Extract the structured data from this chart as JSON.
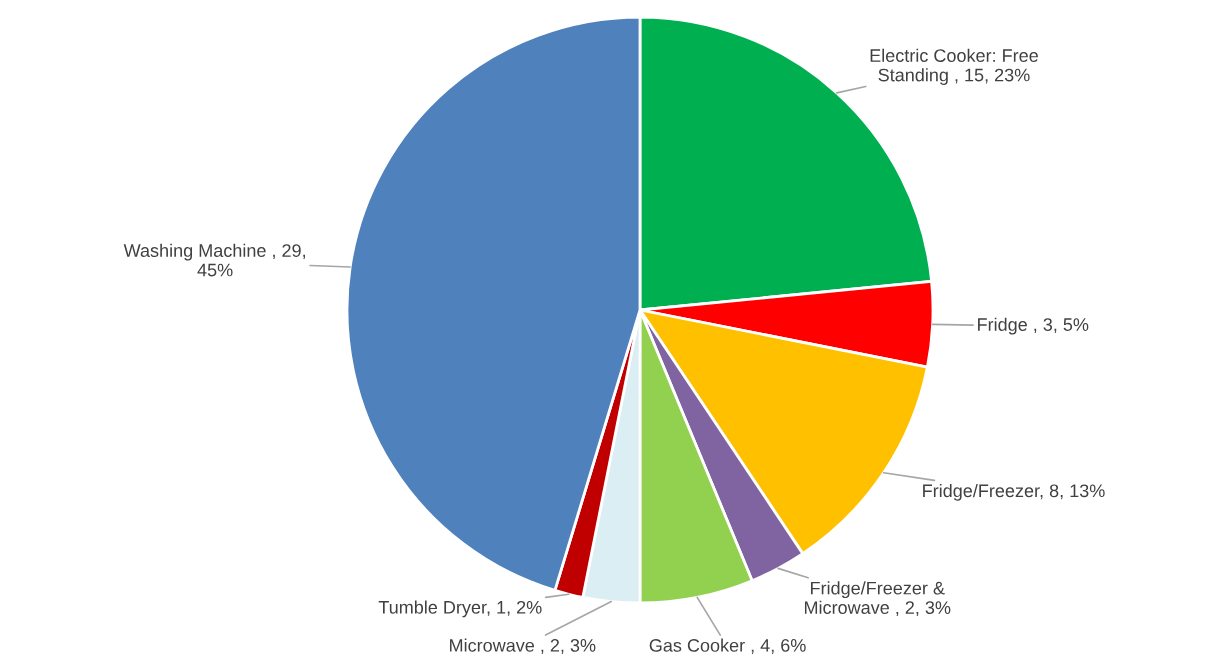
{
  "chart_data": {
    "type": "pie",
    "categories": [
      "Electric Cooker: Free Standing ",
      "Fridge ",
      "Fridge/Freezer",
      "Fridge/Freezer & Microwave ",
      "Gas Cooker ",
      "Microwave ",
      "Tumble Dryer",
      "Washing Machine "
    ],
    "values": [
      15,
      3,
      8,
      2,
      4,
      2,
      1,
      29
    ],
    "value_labels": [
      "15, 23%",
      "3, 5%",
      "8, 13%",
      "2, 3%",
      "4, 6%",
      "2, 3%",
      "1, 2%",
      "29, 45%"
    ],
    "colors": [
      "#00b050",
      "#ff0000",
      "#ffc000",
      "#8064a2",
      "#92d050",
      "#daeef3",
      "#c00000",
      "#4f81bd"
    ]
  }
}
